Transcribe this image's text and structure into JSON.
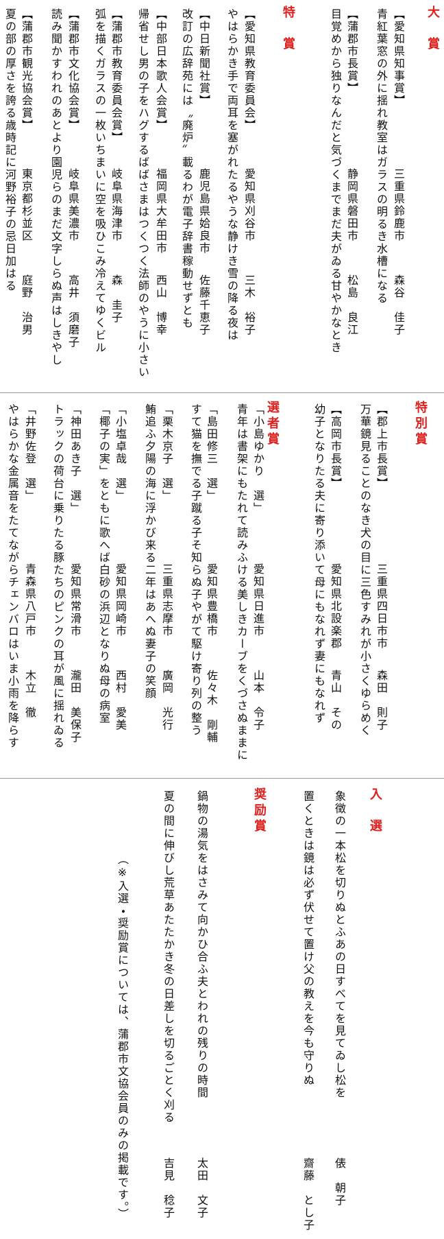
{
  "sections": [
    {
      "groups": [
        {
          "heading": "大　賞",
          "entries": [
            {
              "award": "【愛知県知事賞】",
              "place": "三重県鈴鹿市",
              "name": "森谷　佳子",
              "poem": "青紅葉窓の外に揺れ教室はガラスの明るき水槽になる"
            },
            {
              "award": "【蒲郡市長賞】",
              "place": "静岡県磐田市",
              "name": "松島　良江",
              "poem": "目覚めから独りなんだと気づくまでまだ夫がゐる甘やかなとき"
            }
          ]
        },
        {
          "heading": "特　賞",
          "entries": [
            {
              "award": "【愛知県教育委員会】",
              "place": "愛知県刈谷市",
              "name": "三木　裕子",
              "poem": "やはらかき手で両耳を塞がれたるやうな静けき雪の降る夜は"
            },
            {
              "award": "【中日新聞社賞】",
              "place": "鹿児島県姶良市",
              "name": "佐藤千恵子",
              "poem": "改訂の広辞苑には〝廃炉〟載るわが電子辞書稼動せずとも"
            },
            {
              "award": "【中部日本歌人会賞】",
              "place": "福岡県大牟田市",
              "name": "西山　博幸",
              "poem": "帰省せし男の子をハグするばばさまはつくつく法師のやうに小さい"
            },
            {
              "award": "【蒲郡市教育委員会賞】",
              "place": "岐阜県海津市",
              "name": "森　圭子",
              "poem": "弧を描くガラスの一枚いちまいに空を吸ひこみ冷えてゆくビル"
            },
            {
              "award": "【蒲郡市文化協会賞】",
              "place": "岐阜県美濃市",
              "name": "高井　須磨子",
              "poem": "読み聞かすわれのあとより園児らのまだ文字しらぬ声はしきやし"
            },
            {
              "award": "【蒲郡市観光協会賞】",
              "place": "東京都杉並区",
              "name": "庭野　治男",
              "poem": "夏の部の厚さを誇る歳時記に河野裕子の忌日加はる"
            }
          ]
        }
      ]
    },
    {
      "groups": [
        {
          "heading": "特別賞",
          "entries": [
            {
              "award": "【郡上市長賞】",
              "place": "三重県四日市市",
              "name": "森田　則子",
              "poem": "万華鏡見ることのなき犬の目に三色すみれが小さくゆらめく"
            },
            {
              "award": "【高岡市長賞】",
              "place": "愛知県北設楽郡",
              "name": "青山　その",
              "poem": "幼子となりたる夫に寄り添いて母にもなれず妻にもなれず"
            }
          ]
        },
        {
          "heading": "選者賞",
          "entries": [
            {
              "award": "「小島ゆかり　選」",
              "place": "愛知県日進市",
              "name": "山本　令子",
              "poem": "青年は書架にもたれて読みふける美しきカーブをくづさぬままに"
            },
            {
              "award": "「島田修三　選」",
              "place": "愛知県豊橋市",
              "name": "佐々木　剛輔",
              "poem": "すて猫を撫でる子蹴る子そ知らぬ子やがて駆け寄り列の整う"
            },
            {
              "award": "「栗木京子　選」",
              "place": "三重県志摩市",
              "name": "廣岡　光行",
              "poem": "鮪追ふ夕陽の海に浮かび来る二年はあへぬ妻子の笑顔"
            },
            {
              "award": "「小塩卓哉　選」",
              "place": "愛知県岡崎市",
              "name": "西村　愛美",
              "poem": "「椰子の実」をともに歌へば白砂の浜辺となりぬ母の病室"
            },
            {
              "award": "「神田あき子　選」",
              "place": "愛知県常滑市",
              "name": "瀧田　美保子",
              "poem": "トラックの荷台に乗りたる豚たちのピンクの耳が風に揺れゐる"
            },
            {
              "award": "「井野佐登　選」",
              "place": "青森県八戸市",
              "name": "木立　徹",
              "poem": "やはらかな金属音をたてながらチェンバロはいま小雨を降らす"
            }
          ]
        }
      ]
    },
    {
      "groups": [
        {
          "heading": "入　選",
          "entries": [
            {
              "name": "俵　朝子",
              "poem": "象徴の一本松を切りぬとふあの日すべてを見てゐし松を"
            },
            {
              "name": "齋藤　とし子",
              "poem": "置くときは鏡は必ず伏せて置け父の教えを今も守りぬ"
            }
          ]
        },
        {
          "heading": "奨励賞",
          "entries": [
            {
              "name": "太田　文子",
              "poem": "鍋物の湯気をはさみて向かひ合ふ夫とわれの残りの時間"
            },
            {
              "name": "吉見　稔子",
              "poem": "夏の間に伸びし荒草あたたかき冬の日差しを切るごとく刈る"
            }
          ]
        }
      ],
      "note": "（※入選・奨励賞については、蒲郡市文協会員のみの掲載です。）"
    }
  ]
}
